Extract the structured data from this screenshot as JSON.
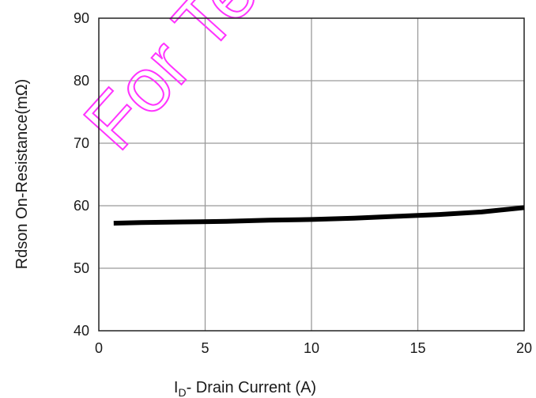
{
  "chart_data": {
    "type": "line",
    "xlabel": {
      "main": "I",
      "sub": "D",
      "rest": "- Drain Current (A)"
    },
    "ylabel": "Rdson On-Resistance(mΩ)",
    "xlim": [
      0,
      20
    ],
    "ylim": [
      40,
      90
    ],
    "xticks": [
      0,
      5,
      10,
      15,
      20
    ],
    "yticks": [
      40,
      50,
      60,
      70,
      80,
      90
    ],
    "xtick_labels": [
      "0",
      "5",
      "10",
      "15",
      "20"
    ],
    "ytick_labels": [
      "40",
      "50",
      "60",
      "70",
      "80",
      "90"
    ],
    "grid": true,
    "legend": "none",
    "series": [
      {
        "color": "#000000",
        "x": [
          0.7,
          2,
          4,
          6,
          8,
          10,
          12,
          14,
          16,
          18,
          20
        ],
        "y": [
          57.2,
          57.3,
          57.4,
          57.5,
          57.7,
          57.8,
          58.0,
          58.3,
          58.6,
          59.0,
          59.7
        ]
      }
    ]
  },
  "watermark": {
    "text": "For Tech",
    "color": "#ff33ff"
  }
}
